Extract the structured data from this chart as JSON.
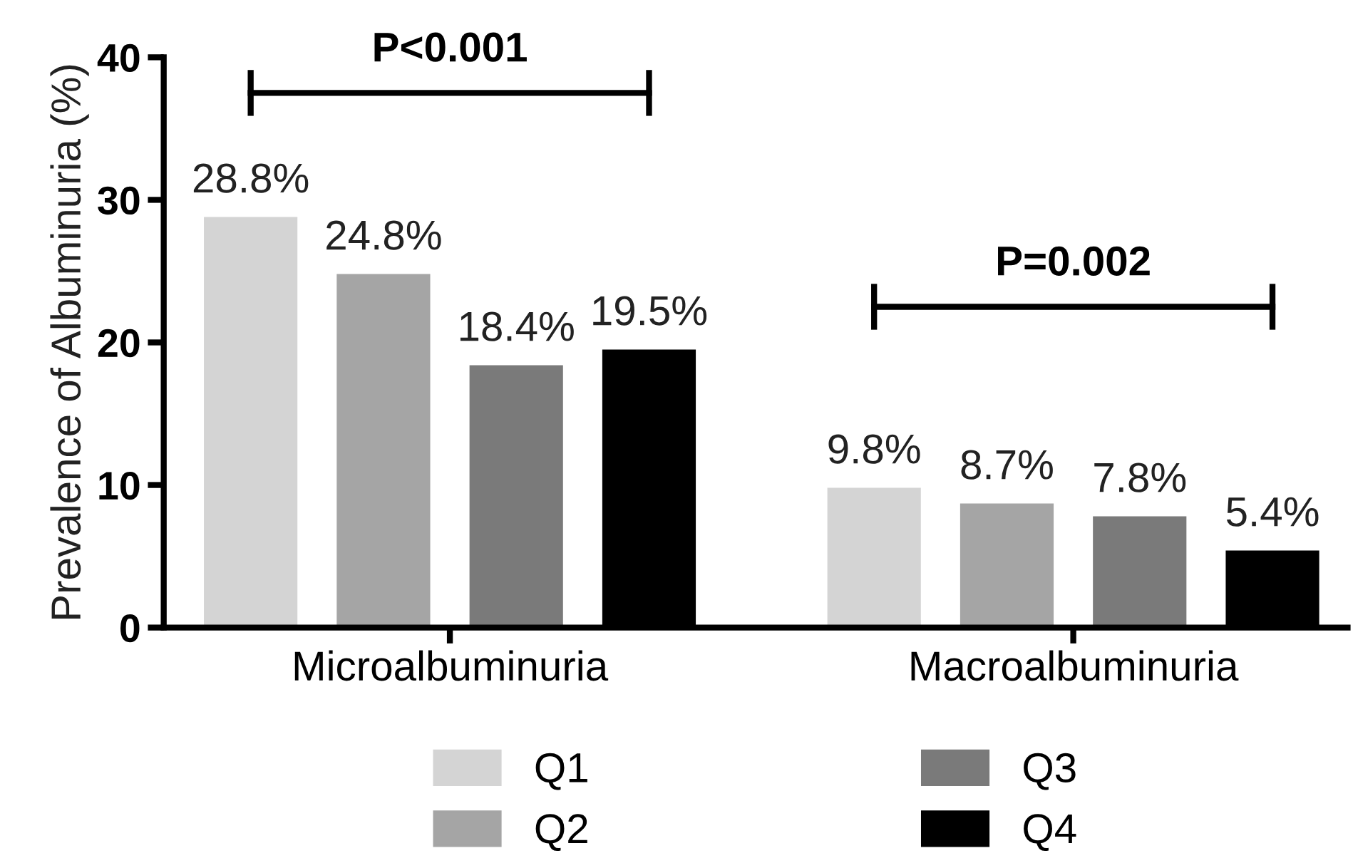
{
  "chart_data": {
    "type": "bar",
    "ylabel": "Prevalence of Albuminuria (%)",
    "categories": [
      "Microalbuminuria",
      "Macroalbuminuria"
    ],
    "series": [
      {
        "name": "Q1",
        "color": "#d4d4d4",
        "values": [
          28.8,
          9.8
        ],
        "value_labels": [
          "28.8%",
          "9.8%"
        ]
      },
      {
        "name": "Q2",
        "color": "#a5a5a5",
        "values": [
          24.8,
          8.7
        ],
        "value_labels": [
          "24.8%",
          "8.7%"
        ]
      },
      {
        "name": "Q3",
        "color": "#7a7a7a",
        "values": [
          18.4,
          7.8
        ],
        "value_labels": [
          "18.4%",
          "7.8%"
        ]
      },
      {
        "name": "Q4",
        "color": "#000000",
        "values": [
          19.5,
          5.4
        ],
        "value_labels": [
          "19.5%",
          "5.4%"
        ]
      }
    ],
    "ylim": [
      0,
      40
    ],
    "yticks": [
      0,
      10,
      20,
      30,
      40
    ],
    "grid": false,
    "legend": "bottom",
    "annotations": [
      "P<0.001",
      "P=0.002"
    ]
  }
}
